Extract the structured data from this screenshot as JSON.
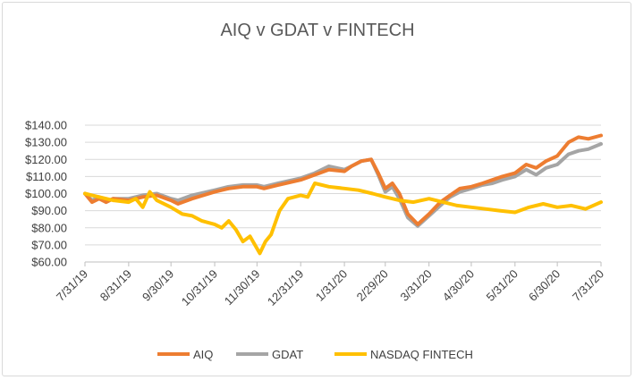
{
  "chart_data": {
    "type": "line",
    "title": "AIQ v GDAT v FINTECH",
    "xlabel": "",
    "ylabel": "",
    "ylim": [
      60,
      140
    ],
    "y_ticks": [
      "$60.00",
      "$70.00",
      "$80.00",
      "$90.00",
      "$100.00",
      "$110.00",
      "$120.00",
      "$130.00",
      "$140.00"
    ],
    "y_tick_values": [
      60,
      70,
      80,
      90,
      100,
      110,
      120,
      130,
      140
    ],
    "x_ticks": [
      "7/31/19",
      "8/31/19",
      "9/30/19",
      "10/31/19",
      "11/30/19",
      "12/31/19",
      "1/31/20",
      "2/29/20",
      "3/31/20",
      "4/30/20",
      "5/31/20",
      "6/30/20",
      "7/31/20"
    ],
    "x_tick_dates": [
      "2019-07-31",
      "2019-08-31",
      "2019-09-30",
      "2019-10-31",
      "2019-11-30",
      "2019-12-31",
      "2020-01-31",
      "2020-02-29",
      "2020-03-31",
      "2020-04-30",
      "2020-05-31",
      "2020-06-30",
      "2020-07-31"
    ],
    "x_range": [
      "2019-07-31",
      "2020-07-31"
    ],
    "grid": "horizontal",
    "legend": "bottom",
    "series": [
      {
        "name": "AIQ",
        "color": "#ED7D31",
        "points": [
          [
            "2019-07-31",
            100
          ],
          [
            "2019-08-05",
            95
          ],
          [
            "2019-08-10",
            97
          ],
          [
            "2019-08-15",
            95
          ],
          [
            "2019-08-20",
            97
          ],
          [
            "2019-08-31",
            96
          ],
          [
            "2019-09-10",
            98
          ],
          [
            "2019-09-20",
            99
          ],
          [
            "2019-09-30",
            96
          ],
          [
            "2019-10-05",
            94
          ],
          [
            "2019-10-15",
            97
          ],
          [
            "2019-10-31",
            101
          ],
          [
            "2019-11-10",
            103
          ],
          [
            "2019-11-20",
            104
          ],
          [
            "2019-11-30",
            104
          ],
          [
            "2019-12-05",
            103
          ],
          [
            "2019-12-15",
            105
          ],
          [
            "2019-12-31",
            108
          ],
          [
            "2020-01-10",
            111
          ],
          [
            "2020-01-20",
            114
          ],
          [
            "2020-01-31",
            113
          ],
          [
            "2020-02-05",
            116
          ],
          [
            "2020-02-12",
            119
          ],
          [
            "2020-02-19",
            120
          ],
          [
            "2020-02-24",
            112
          ],
          [
            "2020-02-29",
            103
          ],
          [
            "2020-03-05",
            106
          ],
          [
            "2020-03-10",
            100
          ],
          [
            "2020-03-16",
            88
          ],
          [
            "2020-03-23",
            82
          ],
          [
            "2020-03-31",
            88
          ],
          [
            "2020-04-08",
            95
          ],
          [
            "2020-04-15",
            99
          ],
          [
            "2020-04-22",
            103
          ],
          [
            "2020-04-30",
            104
          ],
          [
            "2020-05-08",
            106
          ],
          [
            "2020-05-15",
            108
          ],
          [
            "2020-05-22",
            110
          ],
          [
            "2020-05-31",
            112
          ],
          [
            "2020-06-08",
            117
          ],
          [
            "2020-06-15",
            115
          ],
          [
            "2020-06-22",
            119
          ],
          [
            "2020-06-30",
            122
          ],
          [
            "2020-07-08",
            130
          ],
          [
            "2020-07-15",
            133
          ],
          [
            "2020-07-22",
            132
          ],
          [
            "2020-07-31",
            134
          ]
        ]
      },
      {
        "name": "GDAT",
        "color": "#A5A5A5",
        "points": [
          [
            "2019-07-31",
            100
          ],
          [
            "2019-08-05",
            96
          ],
          [
            "2019-08-10",
            98
          ],
          [
            "2019-08-15",
            95
          ],
          [
            "2019-08-20",
            97
          ],
          [
            "2019-08-31",
            97
          ],
          [
            "2019-09-10",
            99
          ],
          [
            "2019-09-20",
            100
          ],
          [
            "2019-09-30",
            97
          ],
          [
            "2019-10-05",
            96
          ],
          [
            "2019-10-15",
            99
          ],
          [
            "2019-10-31",
            102
          ],
          [
            "2019-11-10",
            104
          ],
          [
            "2019-11-20",
            105
          ],
          [
            "2019-11-30",
            105
          ],
          [
            "2019-12-05",
            104
          ],
          [
            "2019-12-15",
            106
          ],
          [
            "2019-12-31",
            109
          ],
          [
            "2020-01-10",
            112
          ],
          [
            "2020-01-20",
            116
          ],
          [
            "2020-01-31",
            114
          ],
          [
            "2020-02-05",
            116
          ],
          [
            "2020-02-12",
            119
          ],
          [
            "2020-02-19",
            120
          ],
          [
            "2020-02-24",
            111
          ],
          [
            "2020-02-29",
            101
          ],
          [
            "2020-03-05",
            104
          ],
          [
            "2020-03-10",
            97
          ],
          [
            "2020-03-16",
            86
          ],
          [
            "2020-03-23",
            81
          ],
          [
            "2020-03-31",
            87
          ],
          [
            "2020-04-08",
            93
          ],
          [
            "2020-04-15",
            98
          ],
          [
            "2020-04-22",
            101
          ],
          [
            "2020-04-30",
            103
          ],
          [
            "2020-05-08",
            105
          ],
          [
            "2020-05-15",
            106
          ],
          [
            "2020-05-22",
            108
          ],
          [
            "2020-05-31",
            110
          ],
          [
            "2020-06-08",
            114
          ],
          [
            "2020-06-15",
            111
          ],
          [
            "2020-06-22",
            115
          ],
          [
            "2020-06-30",
            117
          ],
          [
            "2020-07-08",
            123
          ],
          [
            "2020-07-15",
            125
          ],
          [
            "2020-07-22",
            126
          ],
          [
            "2020-07-31",
            129
          ]
        ]
      },
      {
        "name": "NASDAQ FINTECH",
        "color": "#FFC000",
        "points": [
          [
            "2019-07-31",
            100
          ],
          [
            "2019-08-05",
            99
          ],
          [
            "2019-08-10",
            98
          ],
          [
            "2019-08-15",
            97
          ],
          [
            "2019-08-20",
            96
          ],
          [
            "2019-08-31",
            95
          ],
          [
            "2019-09-05",
            97
          ],
          [
            "2019-09-10",
            92
          ],
          [
            "2019-09-15",
            101
          ],
          [
            "2019-09-20",
            96
          ],
          [
            "2019-09-30",
            92
          ],
          [
            "2019-10-08",
            88
          ],
          [
            "2019-10-15",
            87
          ],
          [
            "2019-10-22",
            84
          ],
          [
            "2019-10-31",
            82
          ],
          [
            "2019-11-05",
            80
          ],
          [
            "2019-11-10",
            84
          ],
          [
            "2019-11-15",
            79
          ],
          [
            "2019-11-20",
            72
          ],
          [
            "2019-11-25",
            75
          ],
          [
            "2019-12-02",
            65
          ],
          [
            "2019-12-06",
            72
          ],
          [
            "2019-12-10",
            76
          ],
          [
            "2019-12-16",
            90
          ],
          [
            "2019-12-22",
            97
          ],
          [
            "2019-12-31",
            99
          ],
          [
            "2020-01-05",
            98
          ],
          [
            "2020-01-10",
            106
          ],
          [
            "2020-01-20",
            104
          ],
          [
            "2020-01-31",
            103
          ],
          [
            "2020-02-10",
            102
          ],
          [
            "2020-02-20",
            100
          ],
          [
            "2020-02-29",
            98
          ],
          [
            "2020-03-10",
            96
          ],
          [
            "2020-03-20",
            95
          ],
          [
            "2020-03-31",
            97
          ],
          [
            "2020-04-10",
            95
          ],
          [
            "2020-04-20",
            93
          ],
          [
            "2020-04-30",
            92
          ],
          [
            "2020-05-10",
            91
          ],
          [
            "2020-05-20",
            90
          ],
          [
            "2020-05-31",
            89
          ],
          [
            "2020-06-10",
            92
          ],
          [
            "2020-06-20",
            94
          ],
          [
            "2020-06-30",
            92
          ],
          [
            "2020-07-10",
            93
          ],
          [
            "2020-07-20",
            91
          ],
          [
            "2020-07-31",
            95
          ]
        ]
      }
    ]
  }
}
